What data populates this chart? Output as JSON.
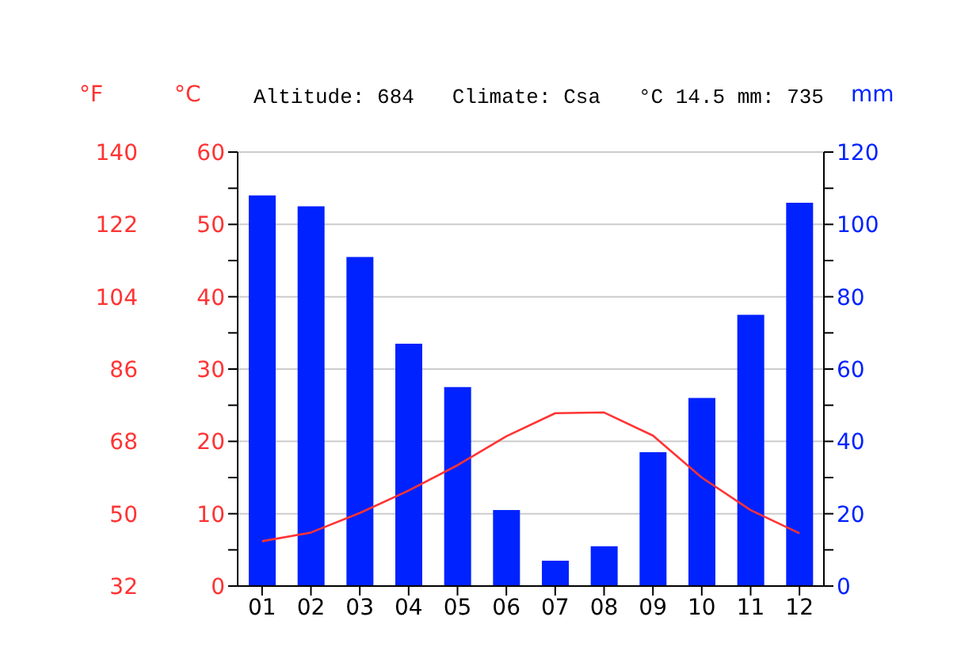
{
  "chart_data": {
    "type": "bar",
    "annotations": [
      "Altitude: 684",
      "Climate: Csa",
      "°C 14.5 mm: 735"
    ],
    "categories": [
      "01",
      "02",
      "03",
      "04",
      "05",
      "06",
      "07",
      "08",
      "09",
      "10",
      "11",
      "12"
    ],
    "ylabel": "°C",
    "y2label": "mm",
    "y3label": "°F",
    "ylim": [
      0,
      60
    ],
    "yticks": [
      0,
      {
        "value": 5,
        "label": null
      },
      10,
      {
        "value": 15,
        "label": null
      },
      20,
      {
        "value": 25,
        "label": null
      },
      30,
      {
        "value": 35,
        "label": null
      },
      40,
      {
        "value": 45,
        "label": null
      },
      50,
      {
        "value": 55,
        "label": null
      },
      60
    ],
    "y2lim": [
      0,
      120
    ],
    "y2ticks": [
      0,
      {
        "value": 10,
        "label": null
      },
      20,
      {
        "value": 30,
        "label": null
      },
      40,
      {
        "value": 50,
        "label": null
      },
      60,
      {
        "value": 70,
        "label": null
      },
      80,
      {
        "value": 90,
        "label": null
      },
      100,
      {
        "value": 110,
        "label": null
      },
      120
    ],
    "y3lim": [
      32,
      140
    ],
    "y3ticks": [
      32,
      50,
      68,
      86,
      104,
      122,
      140
    ],
    "grid": "y",
    "marker": "none",
    "line_style": "solid",
    "series": [
      {
        "axis": "y2",
        "color": "#0022ff",
        "values": [
          108,
          105,
          91,
          67,
          55,
          21,
          7,
          11,
          37,
          52,
          75,
          106
        ]
      },
      {
        "type": "line",
        "axis": "y",
        "color": "#ff3333",
        "values": [
          6.2,
          7.4,
          10.1,
          13.2,
          16.7,
          20.7,
          23.9,
          24.0,
          20.8,
          15.0,
          10.5,
          7.3
        ]
      }
    ]
  }
}
